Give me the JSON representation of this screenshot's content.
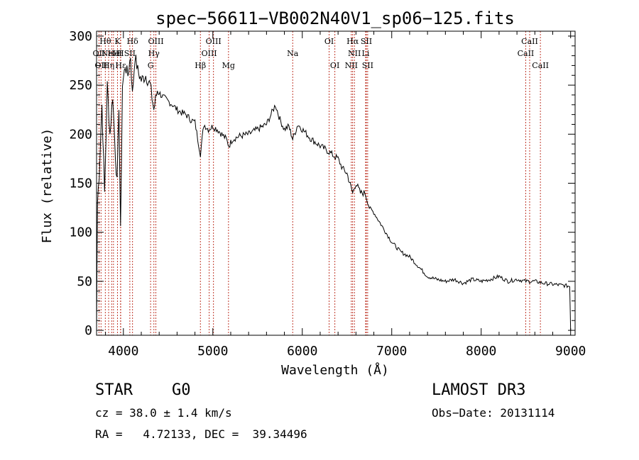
{
  "chart_data": {
    "type": "line",
    "title": "spec−56611−VB002N40V1_sp06−125.fits",
    "xlabel": "Wavelength (Å)",
    "ylabel": "Flux (relative)",
    "xlim": [
      3700,
      9050
    ],
    "ylim": [
      -5,
      305
    ],
    "xticks": [
      4000,
      5000,
      6000,
      7000,
      8000,
      9000
    ],
    "yticks": [
      0,
      50,
      100,
      150,
      200,
      250,
      300
    ],
    "series": [
      {
        "name": "flux",
        "x": [
          3700,
          3710,
          3730,
          3760,
          3790,
          3820,
          3850,
          3880,
          3910,
          3930,
          3950,
          3968,
          3990,
          4020,
          4050,
          4080,
          4101,
          4130,
          4160,
          4200,
          4250,
          4300,
          4340,
          4380,
          4420,
          4480,
          4550,
          4600,
          4650,
          4700,
          4750,
          4800,
          4861,
          4900,
          4950,
          5000,
          5050,
          5100,
          5150,
          5180,
          5220,
          5300,
          5400,
          5500,
          5600,
          5650,
          5700,
          5750,
          5800,
          5850,
          5893,
          5950,
          6000,
          6100,
          6200,
          6300,
          6350,
          6400,
          6450,
          6500,
          6563,
          6600,
          6650,
          6700,
          6750,
          6800,
          6900,
          7000,
          7100,
          7200,
          7300,
          7400,
          7500,
          7600,
          7700,
          7800,
          7900,
          8000,
          8100,
          8200,
          8300,
          8400,
          8500,
          8600,
          8700,
          8800,
          8900,
          8990,
          9000
        ],
        "y": [
          0,
          130,
          160,
          230,
          140,
          250,
          200,
          240,
          180,
          150,
          230,
          100,
          250,
          270,
          260,
          280,
          240,
          280,
          265,
          255,
          260,
          250,
          225,
          245,
          240,
          235,
          230,
          225,
          222,
          220,
          215,
          212,
          180,
          210,
          205,
          208,
          205,
          200,
          195,
          188,
          195,
          198,
          200,
          205,
          210,
          220,
          230,
          215,
          205,
          208,
          195,
          210,
          205,
          195,
          188,
          182,
          178,
          175,
          165,
          160,
          140,
          150,
          140,
          140,
          125,
          120,
          105,
          90,
          80,
          75,
          65,
          55,
          52,
          50,
          52,
          48,
          52,
          50,
          52,
          55,
          50,
          52,
          50,
          50,
          48,
          47,
          46,
          45,
          0
        ]
      }
    ],
    "lines": [
      {
        "wl": 3727,
        "label": "OII",
        "row": 2
      },
      {
        "wl": 3750,
        "label": "OII",
        "row": 3
      },
      {
        "wl": 3798,
        "label": "Hθ",
        "row": 1
      },
      {
        "wl": 3835,
        "label": "Hη",
        "row": 3
      },
      {
        "wl": 3869,
        "label": "NeIII",
        "row": 2
      },
      {
        "wl": 3889,
        "label": "He",
        "row": 2
      },
      {
        "wl": 3934,
        "label": "K",
        "row": 1
      },
      {
        "wl": 3968,
        "label": "H",
        "row": 2
      },
      {
        "wl": 3970,
        "label": "Hε",
        "row": 3
      },
      {
        "wl": 4072,
        "label": "SII",
        "row": 2
      },
      {
        "wl": 4102,
        "label": "Hδ",
        "row": 1
      },
      {
        "wl": 4304,
        "label": "G",
        "row": 3
      },
      {
        "wl": 4341,
        "label": "Hγ",
        "row": 2
      },
      {
        "wl": 4363,
        "label": "OIII",
        "row": 1
      },
      {
        "wl": 4861,
        "label": "Hβ",
        "row": 3
      },
      {
        "wl": 4959,
        "label": "OIII",
        "row": 2
      },
      {
        "wl": 5007,
        "label": "OIII",
        "row": 1
      },
      {
        "wl": 5175,
        "label": "Mg",
        "row": 3
      },
      {
        "wl": 5893,
        "label": "Na",
        "row": 2
      },
      {
        "wl": 6300,
        "label": "OI",
        "row": 1
      },
      {
        "wl": 6364,
        "label": "OI",
        "row": 3
      },
      {
        "wl": 6548,
        "label": "NII",
        "row": 3
      },
      {
        "wl": 6563,
        "label": "Hα",
        "row": 1
      },
      {
        "wl": 6583,
        "label": "NII",
        "row": 2
      },
      {
        "wl": 6708,
        "label": "Li",
        "row": 2
      },
      {
        "wl": 6716,
        "label": "SII",
        "row": 1
      },
      {
        "wl": 6731,
        "label": "SII",
        "row": 3
      },
      {
        "wl": 8498,
        "label": "CaII",
        "row": 2
      },
      {
        "wl": 8542,
        "label": "CaII",
        "row": 1
      },
      {
        "wl": 8662,
        "label": "CaII",
        "row": 3
      }
    ]
  },
  "info": {
    "class_label": "STAR",
    "subclass": "G0",
    "survey": "LAMOST DR3",
    "cz_text": "cz = 38.0 ± 1.4 km/s",
    "obs_date_text": "Obs−Date: 20131114",
    "coords_text": "RA =   4.72133, DEC =  39.34496"
  },
  "colors": {
    "spectrum": "#000000",
    "line_marker": "#c0392b",
    "axis": "#000000"
  }
}
